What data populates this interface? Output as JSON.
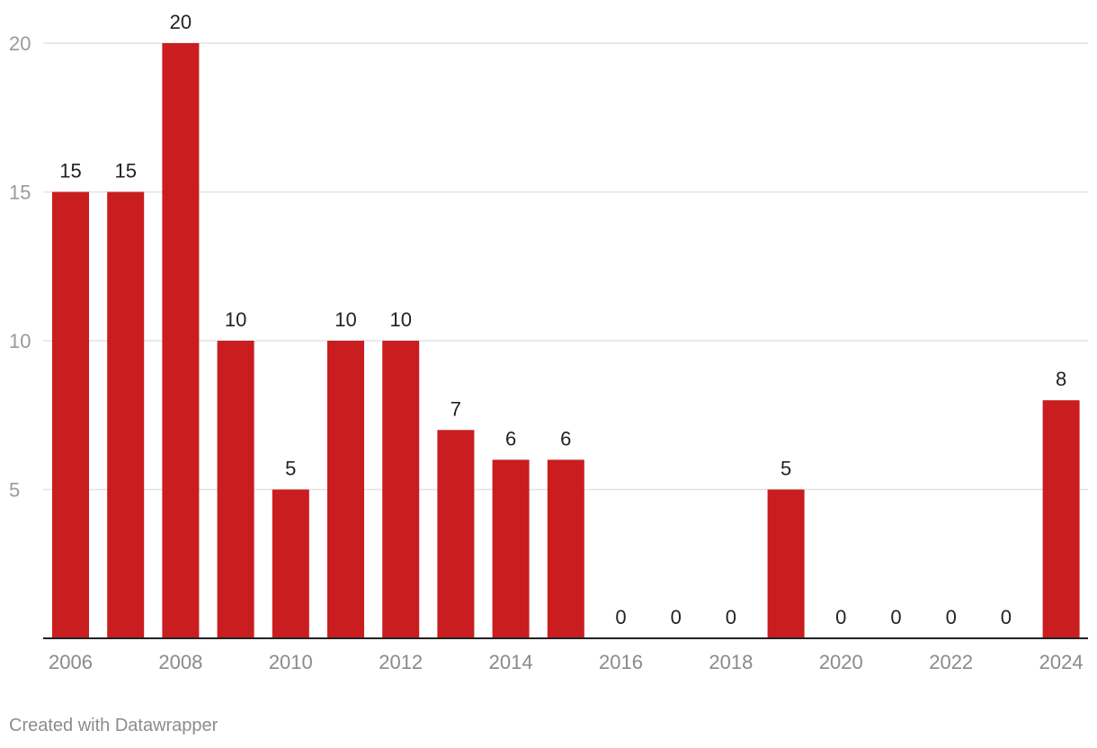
{
  "chart_data": {
    "type": "bar",
    "categories": [
      "2006",
      "2007",
      "2008",
      "2009",
      "2010",
      "2011",
      "2012",
      "2013",
      "2014",
      "2015",
      "2016",
      "2017",
      "2018",
      "2019",
      "2020",
      "2021",
      "2022",
      "2023",
      "2024"
    ],
    "values": [
      15,
      15,
      20,
      10,
      5,
      10,
      10,
      7,
      6,
      6,
      0,
      0,
      0,
      5,
      0,
      0,
      0,
      0,
      8
    ],
    "x_tick_labels": [
      "2006",
      "2008",
      "2010",
      "2012",
      "2014",
      "2016",
      "2018",
      "2020",
      "2022",
      "2024"
    ],
    "y_ticks": [
      5,
      10,
      15,
      20
    ],
    "ylim": [
      0,
      20
    ],
    "bar_color": "#c91d1f",
    "grid": true,
    "title": "",
    "xlabel": "",
    "ylabel": ""
  },
  "footer": {
    "credit": "Created with Datawrapper"
  }
}
